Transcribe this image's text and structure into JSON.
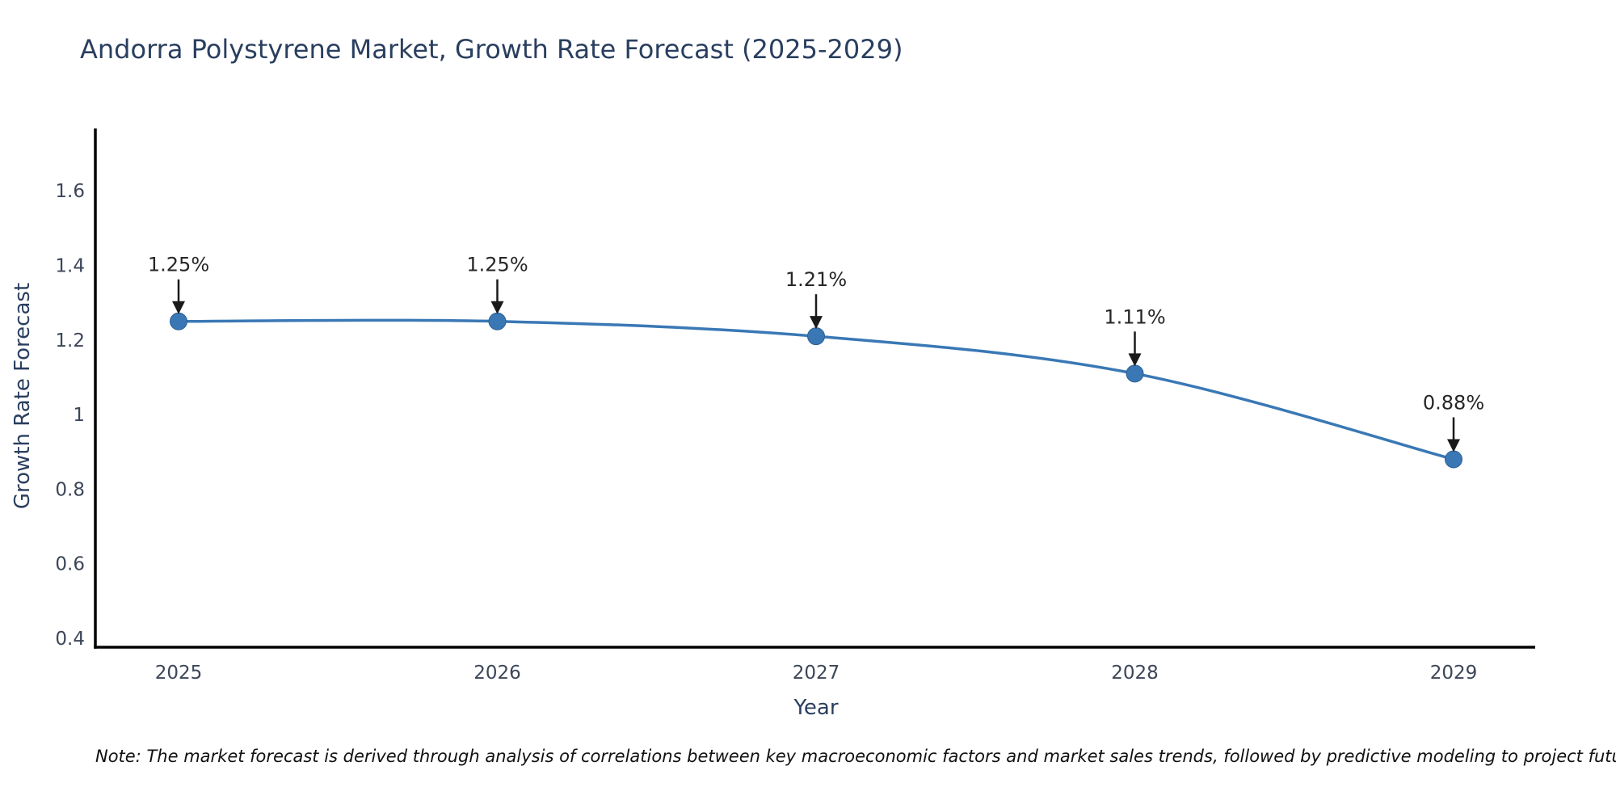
{
  "title": "Andorra Polystyrene Market, Growth Rate Forecast (2025-2029)",
  "note": "Note: The market forecast is derived through analysis of correlations between key macroeconomic factors and market sales trends, followed by predictive modeling to project future sales",
  "chart_data": {
    "type": "line",
    "title": "Andorra Polystyrene Market, Growth Rate Forecast (2025-2029)",
    "x": [
      2025,
      2026,
      2027,
      2028,
      2029
    ],
    "series": [
      {
        "name": "Growth Rate Forecast",
        "values": [
          1.25,
          1.25,
          1.21,
          1.11,
          0.88
        ]
      }
    ],
    "point_labels": [
      "1.25%",
      "1.25%",
      "1.21%",
      "1.11%",
      "0.88%"
    ],
    "xlabel": "Year",
    "ylabel": "Growth Rate Forecast",
    "y_ticks": [
      0.4,
      0.6,
      0.8,
      1,
      1.2,
      1.4,
      1.6
    ],
    "ylim": [
      0.38,
      1.77
    ],
    "line_shape": "spline",
    "grid": false,
    "legend": "none",
    "colors": {
      "line": "#3a78b5",
      "marker": "#3a78b5",
      "marker_edge": "#2e6094",
      "axis": "#000000",
      "tick_label": "#3c4658",
      "axis_title": "#2a3f5f",
      "annotation_text": "#262626",
      "arrow": "#1a1a1a",
      "title": "#2a3f5f"
    }
  }
}
